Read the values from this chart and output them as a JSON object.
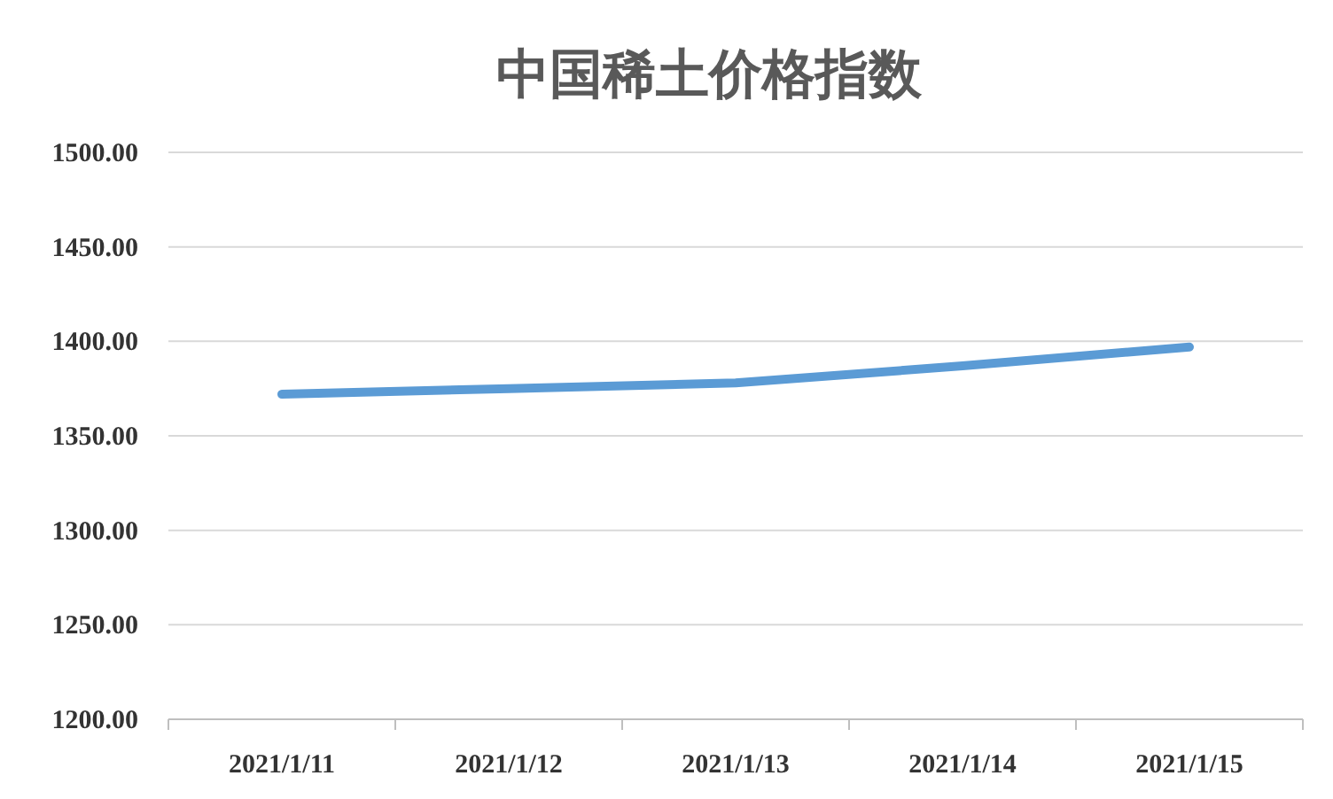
{
  "chart_data": {
    "type": "line",
    "title": "中国稀土价格指数",
    "categories": [
      "2021/1/11",
      "2021/1/12",
      "2021/1/13",
      "2021/1/14",
      "2021/1/15"
    ],
    "series": [
      {
        "color": "#5b9bd5",
        "values": [
          1372,
          1375,
          1378,
          1387,
          1397
        ]
      }
    ],
    "ylim": [
      1200,
      1500
    ],
    "yticks": [
      {
        "value": 1200,
        "label": "1200.00"
      },
      {
        "value": 1250,
        "label": "1250.00"
      },
      {
        "value": 1300,
        "label": "1300.00"
      },
      {
        "value": 1350,
        "label": "1350.00"
      },
      {
        "value": 1400,
        "label": "1400.00"
      },
      {
        "value": 1450,
        "label": "1450.00"
      },
      {
        "value": 1500,
        "label": "1500.00"
      }
    ],
    "grid": "y",
    "marker": "none",
    "line_style": "solid"
  }
}
